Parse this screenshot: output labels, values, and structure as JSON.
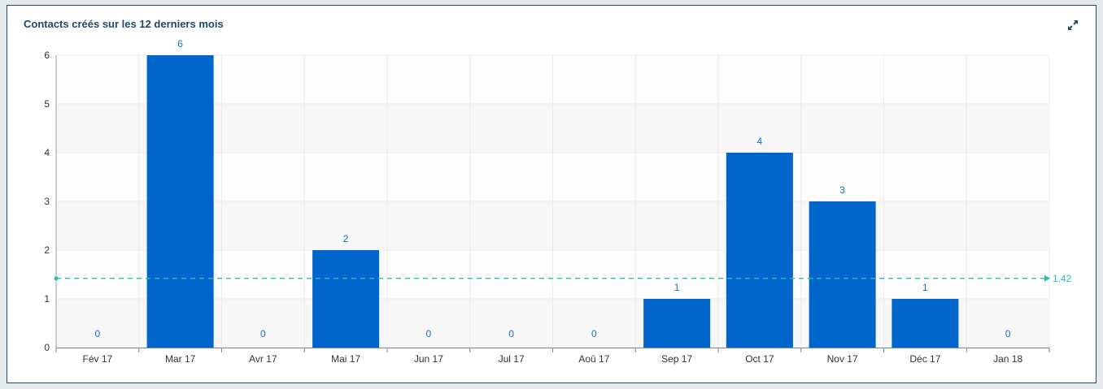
{
  "widget": {
    "title": "Contacts créés sur les 12 derniers mois",
    "expand_icon": "expand-arrows-icon"
  },
  "colors": {
    "bar": "#0066cc",
    "label": "#1e6fc5",
    "average": "#2bbfb0",
    "title": "#1d4a6b",
    "border": "#1d4f6b"
  },
  "chart_data": {
    "type": "bar",
    "title": "Contacts créés sur les 12 derniers mois",
    "xlabel": "",
    "ylabel": "",
    "categories": [
      "Fév 17",
      "Mar 17",
      "Avr 17",
      "Mai 17",
      "Jun 17",
      "Jul 17",
      "Aoû 17",
      "Sep 17",
      "Oct 17",
      "Nov 17",
      "Déc 17",
      "Jan 18"
    ],
    "values": [
      0,
      6,
      0,
      2,
      0,
      0,
      0,
      1,
      4,
      3,
      1,
      0
    ],
    "ylim": [
      0,
      6
    ],
    "yticks": [
      0,
      1,
      2,
      3,
      4,
      5,
      6
    ],
    "grid": true,
    "average_line": {
      "value": 1.42,
      "label": "1.42"
    }
  }
}
